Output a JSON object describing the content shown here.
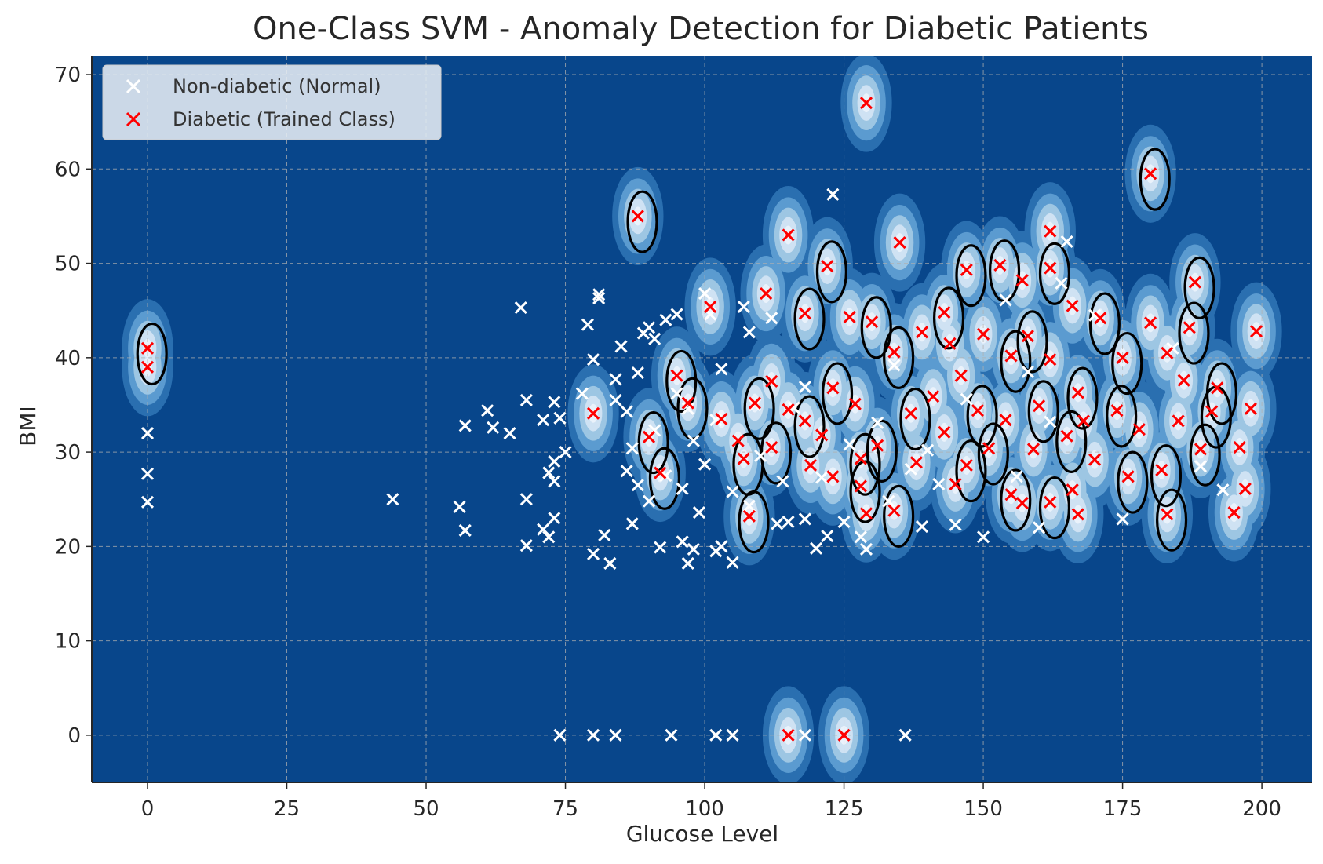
{
  "chart_data": {
    "type": "scatter",
    "title": "One-Class SVM - Anomaly Detection for Diabetic Patients",
    "xlabel": "Glucose Level",
    "ylabel": "BMI",
    "xlim": [
      -10,
      209
    ],
    "ylim": [
      -5,
      72
    ],
    "xticks": [
      0,
      25,
      50,
      75,
      100,
      125,
      150,
      175,
      200
    ],
    "yticks": [
      0,
      10,
      20,
      30,
      40,
      50,
      60,
      70
    ],
    "grid": true,
    "legend_position": "top-left",
    "colors": {
      "background": "#08468b",
      "normal_marker": "#ffffff",
      "diabetic_marker": "#ff0000",
      "boundary": "#000000",
      "density_levels": [
        "#2a6fb0",
        "#5b9bd0",
        "#9dc6e3",
        "#cfe2f3",
        "#eaf2fb"
      ]
    },
    "series": [
      {
        "name": "Non-diabetic (Normal)",
        "marker": "x",
        "color": "#ffffff",
        "points": [
          [
            0,
            32
          ],
          [
            0,
            27.7
          ],
          [
            0,
            24.7
          ],
          [
            44,
            25
          ],
          [
            56,
            24.2
          ],
          [
            57,
            32.8
          ],
          [
            57,
            21.7
          ],
          [
            61,
            34.4
          ],
          [
            62,
            32.6
          ],
          [
            65,
            32
          ],
          [
            67,
            45.3
          ],
          [
            68,
            35.5
          ],
          [
            68,
            25
          ],
          [
            68,
            20.1
          ],
          [
            71,
            33.4
          ],
          [
            71,
            21.8
          ],
          [
            72,
            27.8
          ],
          [
            72,
            21
          ],
          [
            73,
            35.3
          ],
          [
            73,
            29
          ],
          [
            73,
            23
          ],
          [
            73,
            26.9
          ],
          [
            74,
            33.6
          ],
          [
            75,
            30
          ],
          [
            78,
            36.2
          ],
          [
            79,
            43.5
          ],
          [
            80,
            39.8
          ],
          [
            80,
            19.2
          ],
          [
            81,
            46.7
          ],
          [
            81,
            46.3
          ],
          [
            82,
            21.2
          ],
          [
            83,
            18.2
          ],
          [
            84,
            37.7
          ],
          [
            85,
            41.2
          ],
          [
            86,
            34.3
          ],
          [
            87,
            22.4
          ],
          [
            88,
            26.5
          ],
          [
            89,
            42.6
          ],
          [
            90,
            43.2
          ],
          [
            91,
            42
          ],
          [
            92,
            19.9
          ],
          [
            93,
            44
          ],
          [
            95,
            44.6
          ],
          [
            96,
            20.5
          ],
          [
            97,
            18.2
          ],
          [
            98,
            19.7
          ],
          [
            99,
            23.6
          ],
          [
            100,
            46.8
          ],
          [
            101,
            44.6
          ],
          [
            102,
            19.5
          ],
          [
            103,
            20
          ],
          [
            105,
            18.3
          ],
          [
            107,
            45.4
          ],
          [
            108,
            42.7
          ],
          [
            112,
            44.2
          ],
          [
            113,
            22.4
          ],
          [
            115,
            22.6
          ],
          [
            118,
            22.9
          ],
          [
            120,
            19.8
          ],
          [
            122,
            21.1
          ],
          [
            123,
            57.3
          ],
          [
            125,
            22.6
          ],
          [
            128,
            21
          ],
          [
            129,
            19.7
          ],
          [
            133,
            24.8
          ],
          [
            139,
            22.1
          ],
          [
            145,
            22.3
          ],
          [
            150,
            21
          ],
          [
            154,
            46.1
          ],
          [
            158,
            38.5
          ],
          [
            160,
            22
          ],
          [
            162,
            33.2
          ],
          [
            164,
            47.9
          ],
          [
            165,
            52.3
          ],
          [
            170,
            44.5
          ],
          [
            175,
            22.9
          ],
          [
            184,
            41
          ],
          [
            189,
            28.5
          ],
          [
            193,
            26
          ],
          [
            116,
            34.7
          ],
          [
            140,
            30.2
          ],
          [
            156,
            27.4
          ],
          [
            105,
            25.8
          ],
          [
            110,
            29.6
          ],
          [
            98,
            31.2
          ],
          [
            93,
            27.5
          ],
          [
            102,
            33.4
          ],
          [
            118,
            36.9
          ],
          [
            134,
            39.2
          ],
          [
            147,
            35.6
          ],
          [
            121,
            27.3
          ],
          [
            87,
            30.4
          ],
          [
            90,
            24.8
          ],
          [
            96,
            26.1
          ],
          [
            100,
            28.7
          ],
          [
            108,
            24.3
          ],
          [
            114,
            26.9
          ],
          [
            126,
            30.8
          ],
          [
            131,
            33.1
          ],
          [
            137,
            28.2
          ],
          [
            142,
            26.6
          ],
          [
            84,
            35.5
          ],
          [
            88,
            38.4
          ],
          [
            95,
            36.2
          ],
          [
            103,
            38.8
          ],
          [
            109,
            35
          ],
          [
            86,
            28
          ],
          [
            91,
            32.3
          ],
          [
            97,
            34.6
          ],
          [
            74,
            0
          ],
          [
            80,
            0
          ],
          [
            84,
            0
          ],
          [
            94,
            0
          ],
          [
            102,
            0
          ],
          [
            105,
            0
          ],
          [
            118,
            0
          ],
          [
            136,
            0
          ]
        ]
      },
      {
        "name": "Diabetic (Trained Class)",
        "marker": "x",
        "color": "#ff0000",
        "points": [
          [
            0,
            41
          ],
          [
            0,
            39
          ],
          [
            88,
            55
          ],
          [
            129,
            67
          ],
          [
            180,
            59.5
          ],
          [
            115,
            53
          ],
          [
            122,
            49.7
          ],
          [
            135,
            52.2
          ],
          [
            147,
            49.3
          ],
          [
            111,
            46.8
          ],
          [
            153,
            49.8
          ],
          [
            162,
            53.4
          ],
          [
            162,
            49.5
          ],
          [
            157,
            48.2
          ],
          [
            188,
            48
          ],
          [
            101,
            45.4
          ],
          [
            118,
            44.7
          ],
          [
            126,
            44.3
          ],
          [
            130,
            43.8
          ],
          [
            139,
            42.7
          ],
          [
            143,
            44.8
          ],
          [
            150,
            42.5
          ],
          [
            158,
            42.3
          ],
          [
            166,
            45.5
          ],
          [
            171,
            44.2
          ],
          [
            180,
            43.7
          ],
          [
            187,
            43.2
          ],
          [
            199,
            42.8
          ],
          [
            134,
            40.6
          ],
          [
            144,
            41.5
          ],
          [
            155,
            40.2
          ],
          [
            162,
            39.8
          ],
          [
            175,
            40
          ],
          [
            183,
            40.5
          ],
          [
            95,
            38.1
          ],
          [
            112,
            37.5
          ],
          [
            123,
            36.8
          ],
          [
            146,
            38.1
          ],
          [
            167,
            36.3
          ],
          [
            186,
            37.6
          ],
          [
            192,
            36.8
          ],
          [
            80,
            34.1
          ],
          [
            97,
            35.2
          ],
          [
            103,
            33.5
          ],
          [
            109,
            35.2
          ],
          [
            115,
            34.5
          ],
          [
            118,
            33.3
          ],
          [
            127,
            35.1
          ],
          [
            137,
            34.1
          ],
          [
            141,
            35.9
          ],
          [
            149,
            34.4
          ],
          [
            154,
            33.4
          ],
          [
            160,
            34.9
          ],
          [
            168,
            33.3
          ],
          [
            174,
            34.4
          ],
          [
            185,
            33.3
          ],
          [
            191,
            34.3
          ],
          [
            198,
            34.6
          ],
          [
            90,
            31.6
          ],
          [
            106,
            31.2
          ],
          [
            112,
            30.5
          ],
          [
            121,
            31.8
          ],
          [
            131,
            30.7
          ],
          [
            143,
            32.1
          ],
          [
            151,
            30.4
          ],
          [
            159,
            30.3
          ],
          [
            165,
            31.7
          ],
          [
            178,
            32.4
          ],
          [
            189,
            30.3
          ],
          [
            196,
            30.5
          ],
          [
            107,
            29.3
          ],
          [
            119,
            28.6
          ],
          [
            128,
            29.3
          ],
          [
            138,
            28.9
          ],
          [
            147,
            28.6
          ],
          [
            170,
            29.2
          ],
          [
            182,
            28.1
          ],
          [
            123,
            27.4
          ],
          [
            128,
            26.4
          ],
          [
            145,
            26.6
          ],
          [
            155,
            25.5
          ],
          [
            166,
            26
          ],
          [
            176,
            27.4
          ],
          [
            197,
            26.1
          ],
          [
            108,
            23.2
          ],
          [
            129,
            23.5
          ],
          [
            134,
            23.8
          ],
          [
            157,
            24.6
          ],
          [
            162,
            24.7
          ],
          [
            167,
            23.4
          ],
          [
            183,
            23.4
          ],
          [
            195,
            23.6
          ],
          [
            92,
            27.8
          ],
          [
            115,
            0
          ],
          [
            125,
            0
          ]
        ]
      }
    ],
    "decision_boundary_color": "#000000"
  }
}
